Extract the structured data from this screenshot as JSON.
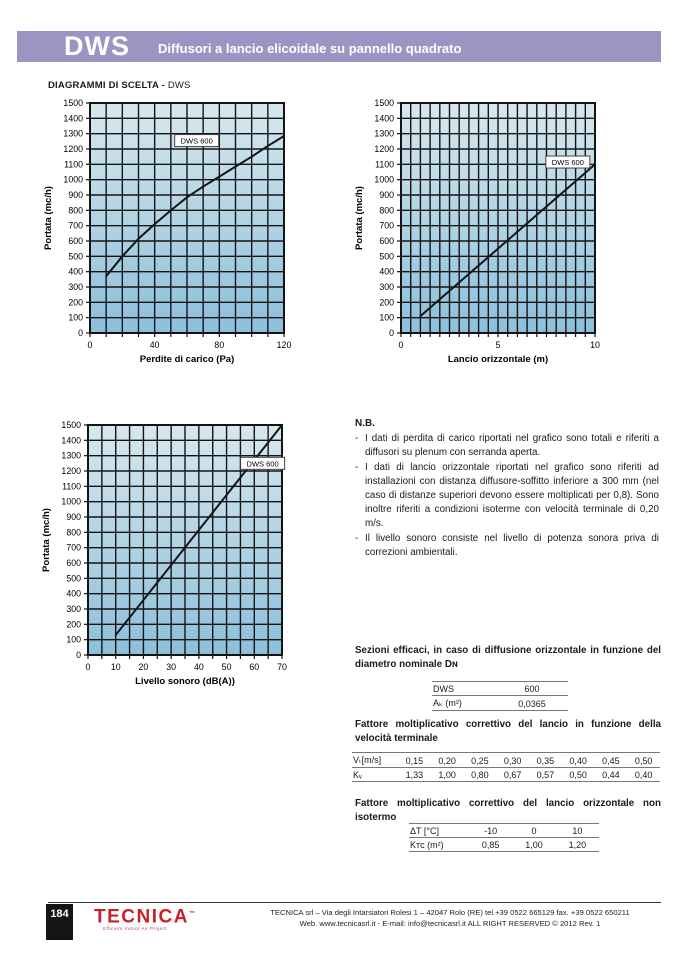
{
  "header": {
    "product": "DWS",
    "subtitle": "Diffusori a lancio elicoidale su pannello quadrato"
  },
  "section": {
    "title_bold": "DIAGRAMMI DI SCELTA -",
    "title_normal": "DWS"
  },
  "nb": {
    "title": "N.B.",
    "items": [
      "I dati di perdita di carico riportati nel grafico sono totali e riferiti a diffusori su plenum con serranda aperta.",
      "I dati di lancio orizzontale riportati nel grafico sono riferiti ad installazioni con distanza diffusore-soffitto inferiore a 300 mm (nel caso di distanze superiori devono essere moltiplicati per 0,8). Sono inoltre riferiti a condizioni isoterme con velocità terminale di 0,20 m/s.",
      "Il livello sonoro consiste nel livello di potenza sonora priva di correzioni ambientali."
    ]
  },
  "sezioni": {
    "heading": "Sezioni efficaci, in caso di diffusione orizzontale in funzione del diametro nominale Dɴ",
    "rows": [
      [
        "DWS",
        "600"
      ],
      [
        "Aₖ (m²)",
        "0,0365"
      ]
    ]
  },
  "fattore_velocita": {
    "heading": "Fattore moltiplicativo correttivo del lancio in funzione della velocità terminale",
    "rows": [
      [
        "Vₜ[m/s]",
        "0,15",
        "0,20",
        "0,25",
        "0,30",
        "0,35",
        "0,40",
        "0,45",
        "0,50"
      ],
      [
        "Kᵥ",
        "1,33",
        "1,00",
        "0,80",
        "0,67",
        "0,57",
        "0,50",
        "0,44",
        "0,40"
      ]
    ]
  },
  "fattore_isotermo": {
    "heading": "Fattore moltiplicativo correttivo del lancio orizzontale non isotermo",
    "rows": [
      [
        "ΔT [°C]",
        "-10",
        "0",
        "10"
      ],
      [
        "Kᴛᴄ (m²)",
        "0,85",
        "1,00",
        "1,20"
      ]
    ]
  },
  "footer": {
    "page_number": "184",
    "logo_text": "TECNICA",
    "logo_tm": "™",
    "logo_tagline": "Efficient Indoor Air Project",
    "line1": "TECNICA srl – Via degli Intarsiatori Rolesi 1 – 42047 Rolo (RE) tel.+39 0522 665129 fax. +39 0522 650211",
    "line2": "Web. www.tecnicasrl.it  - E-mail: info@tecnicasrl.it  ALL RIGHT RESERVED  © 2012  Rev. 1"
  },
  "colors": {
    "banner": "#9b95c4",
    "chart_bg_top": "#d7e8ee",
    "chart_bg_bottom": "#8dbfdb",
    "grid": "#141414",
    "logo_red": "#cc2027"
  },
  "chart_data": [
    {
      "id": "perdite-di-carico",
      "type": "line",
      "xlabel": "Perdite di carico (Pa)",
      "ylabel": "Portata (mc/h)",
      "xlim": [
        0,
        120
      ],
      "xgrid": 10,
      "xticks": [
        0,
        40,
        80,
        120
      ],
      "ylim": [
        0,
        1500
      ],
      "ygrid": 100,
      "grid": true,
      "background": "blue-gradient",
      "series": [
        {
          "name": "DWS 600",
          "points": [
            [
              10,
              370
            ],
            [
              20,
              500
            ],
            [
              30,
              615
            ],
            [
              40,
              710
            ],
            [
              50,
              800
            ],
            [
              60,
              885
            ],
            [
              70,
              955
            ],
            [
              80,
              1020
            ],
            [
              90,
              1085
            ],
            [
              100,
              1150
            ],
            [
              110,
              1220
            ],
            [
              120,
              1285
            ]
          ],
          "label_at": [
            66,
            1255
          ]
        }
      ]
    },
    {
      "id": "lancio-orizzontale",
      "type": "line",
      "xlabel": "Lancio orizzontale (m)",
      "ylabel": "Portata (mc/h)",
      "xlim": [
        0,
        10
      ],
      "xgrid": 0.5,
      "xticks": [
        0,
        5,
        10
      ],
      "ylim": [
        0,
        1500
      ],
      "ygrid": 100,
      "grid": true,
      "background": "blue-gradient",
      "series": [
        {
          "name": "DWS 600",
          "points": [
            [
              1,
              110
            ],
            [
              10,
              1100
            ]
          ],
          "label_at": [
            8.6,
            1115
          ]
        }
      ]
    },
    {
      "id": "livello-sonoro",
      "type": "line",
      "xlabel": "Livello sonoro (dB(A))",
      "ylabel": "Portata (mc/h)",
      "xlim": [
        0,
        70
      ],
      "xgrid": 5,
      "xticks": [
        0,
        10,
        20,
        30,
        40,
        50,
        60,
        70
      ],
      "ylim": [
        0,
        1500
      ],
      "ygrid": 100,
      "grid": true,
      "background": "blue-gradient",
      "series": [
        {
          "name": "DWS 600",
          "points": [
            [
              10,
              130
            ],
            [
              70,
              1500
            ]
          ],
          "label_at": [
            63,
            1250
          ]
        }
      ]
    }
  ]
}
